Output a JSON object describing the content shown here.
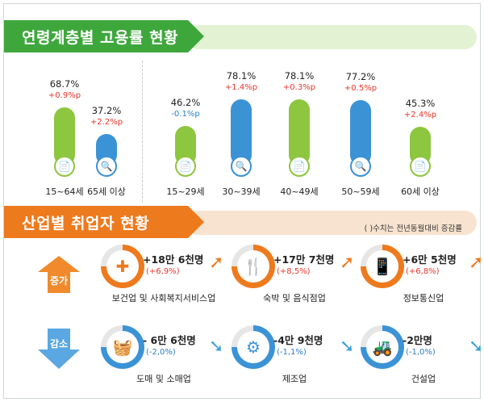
{
  "section_age": {
    "title": "연령계층별 고용률 현황"
  },
  "section_industry": {
    "title": "산업별 취업자 현황",
    "note": "( )수치는 전년동월대비 증감률"
  },
  "colors": {
    "green": "#8dc63f",
    "blue": "#3b93d6",
    "orange": "#ee7a1e",
    "up_red": "#e8352b",
    "down_blue": "#2c7ec8"
  },
  "chart_data": {
    "type": "bar",
    "title": "연령계층별 고용률 현황",
    "categories": [
      "15~64세",
      "65세 이상",
      "15~29세",
      "30~39세",
      "40~49세",
      "50~59세",
      "60세 이상"
    ],
    "values": [
      68.7,
      37.2,
      46.2,
      78.1,
      78.1,
      77.2,
      45.3
    ],
    "value_labels": [
      "68.7%",
      "37.2%",
      "46.2%",
      "78.1%",
      "78.1%",
      "77.2%",
      "45.3%"
    ],
    "changes": [
      "+0.9%p",
      "+2.2%p",
      "-0.1%p",
      "+1.4%p",
      "+0.3%p",
      "+0.5%p",
      "+2.4%p"
    ],
    "bar_colors": [
      "green",
      "blue",
      "green",
      "blue",
      "green",
      "blue",
      "green"
    ],
    "ylim": [
      0,
      100
    ],
    "grid": false
  },
  "industries": {
    "increase_label": "증가",
    "decrease_label": "감소",
    "up": [
      {
        "name": "보건업 및 사회복지서비스업",
        "amount": "+18만 6천명",
        "pct": "(+6,9%)",
        "icon": "medical-kit-icon"
      },
      {
        "name": "숙박 및 음식점업",
        "amount": "+17만 7천명",
        "pct": "(+8,5%)",
        "icon": "dining-icon"
      },
      {
        "name": "정보통신업",
        "amount": "+6만 5천명",
        "pct": "(+6,8%)",
        "icon": "smartphone-icon"
      }
    ],
    "down": [
      {
        "name": "도매 및 소매업",
        "amount": "- 6만 6천명",
        "pct": "(-2,0%)",
        "icon": "shopping-basket-icon"
      },
      {
        "name": "제조업",
        "amount": "-4만 9천명",
        "pct": "(-1,1%)",
        "icon": "gears-icon"
      },
      {
        "name": "건설업",
        "amount": "-2만명",
        "pct": "(-1,0%)",
        "icon": "excavator-icon"
      }
    ]
  }
}
